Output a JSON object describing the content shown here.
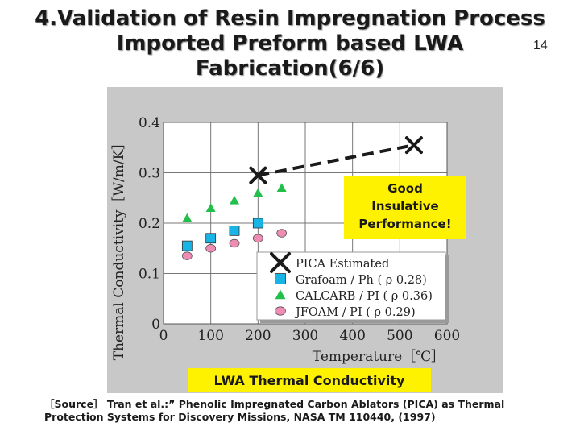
{
  "slide": {
    "title_lines": [
      "4.Validation of Resin Impregnation Process",
      "Imported Preform based LWA",
      "Fabrication(6/6)"
    ],
    "page_number": "14",
    "source_lines": [
      "［Source］ Tran et al.:” Phenolic Impregnated Carbon Ablators (PICA) as Thermal",
      "Protection Systems for Discovery Missions, NASA TM 110440, (1997)"
    ]
  },
  "chart_data": {
    "type": "scatter",
    "title": "LWA Thermal Conductivity",
    "xlabel": "Temperature［℃］",
    "ylabel": "Thermal Conductivity［W/m/K］",
    "xlim": [
      0,
      600
    ],
    "ylim": [
      0,
      0.4
    ],
    "x_ticks": [
      "0",
      "100",
      "200",
      "300",
      "400",
      "500",
      "600"
    ],
    "y_ticks": [
      "0",
      "0.1",
      "0.2",
      "0.3",
      "0.4"
    ],
    "grid": true,
    "legend_position": "bottom-right",
    "annotation": "Good Insulative Performance!",
    "series": [
      {
        "name": "PICA Estimated",
        "marker": "x",
        "color": "#1a1a1a",
        "line": "dashed",
        "points": [
          [
            200,
            0.295
          ],
          [
            530,
            0.355
          ]
        ]
      },
      {
        "name": "Grafoam / Ph ( ρ 0.28)",
        "marker": "square",
        "color": "#19b4e6",
        "points": [
          [
            50,
            0.155
          ],
          [
            100,
            0.17
          ],
          [
            150,
            0.185
          ],
          [
            200,
            0.2
          ]
        ]
      },
      {
        "name": "CALCARB / PI ( ρ 0.36)",
        "marker": "triangle",
        "color": "#22c04a",
        "points": [
          [
            50,
            0.21
          ],
          [
            100,
            0.23
          ],
          [
            150,
            0.245
          ],
          [
            200,
            0.26
          ],
          [
            250,
            0.27
          ]
        ]
      },
      {
        "name": "JFOAM / PI ( ρ 0.29)",
        "marker": "circle",
        "color": "#f08cb4",
        "points": [
          [
            50,
            0.135
          ],
          [
            100,
            0.15
          ],
          [
            150,
            0.16
          ],
          [
            200,
            0.17
          ],
          [
            250,
            0.18
          ]
        ]
      }
    ]
  }
}
